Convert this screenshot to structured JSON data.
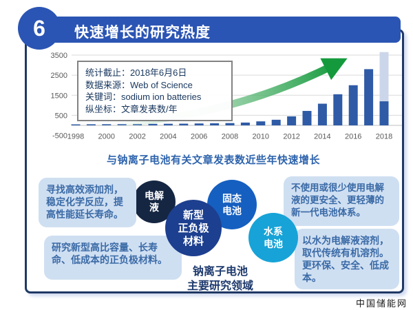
{
  "header": {
    "number": "6",
    "title": "快速增长的研究热度"
  },
  "chart": {
    "info_box": {
      "lines": [
        "统计截止：2018年6月6日",
        "数据来源：Web of Science",
        "关键词：sodium ion batteries",
        "纵坐标：文章发表数/年"
      ]
    },
    "caption": "与钠离子电池有关文章发表数近些年快速增长"
  },
  "chart_data": {
    "type": "bar",
    "title": "与钠离子电池有关文章发表数近些年快速增长",
    "xlabel": "",
    "ylabel": "文章发表数/年",
    "categories": [
      1998,
      1999,
      2000,
      2001,
      2002,
      2003,
      2004,
      2005,
      2006,
      2007,
      2008,
      2009,
      2010,
      2011,
      2012,
      2013,
      2014,
      2015,
      2016,
      2017,
      2018
    ],
    "values": [
      50,
      55,
      60,
      65,
      70,
      75,
      80,
      85,
      95,
      105,
      115,
      140,
      200,
      280,
      450,
      720,
      1080,
      1550,
      2000,
      2800,
      1200
    ],
    "projected_2018_total": 3650,
    "ylim": [
      -500,
      3500
    ],
    "yticks": [
      3500,
      2500,
      1500,
      500,
      -500
    ],
    "xtick_step": 2,
    "grid": true,
    "legend": false,
    "bar_color": "#2f5ba6",
    "projected_color": "#ccd6ea"
  },
  "research_areas": {
    "circles": [
      {
        "label": "电解\n液",
        "color": "#152642"
      },
      {
        "label": "新型\n正负极\n材料",
        "color": "#1d3f8f"
      },
      {
        "label": "固态\n电池",
        "color": "#155fc0"
      },
      {
        "label": "水系\n电池",
        "color": "#17a3d7"
      }
    ],
    "notes": [
      "寻找高效添加剂，稳定化学反应，提高性能延长寿命。",
      "研究新型高比容量、长寿命、低成本的正负极材料。",
      "不使用或很少使用电解液的更安全、更轻薄的新一代电池体系。",
      "以水为电解液溶剂，取代传统有机溶剂。更环保、安全、低成本。"
    ],
    "footer_label": "钠离子电池\n主要研究领域"
  },
  "watermark": "中国储能网",
  "colors": {
    "header_blue": "#2b55b4",
    "panel_border": "#1f3864",
    "caption_blue": "#2e64ad",
    "note_bg": "#cfdff2",
    "note_text": "#3a6aa6",
    "arrow_green": "#149a3c",
    "axis_text": "#595959"
  }
}
